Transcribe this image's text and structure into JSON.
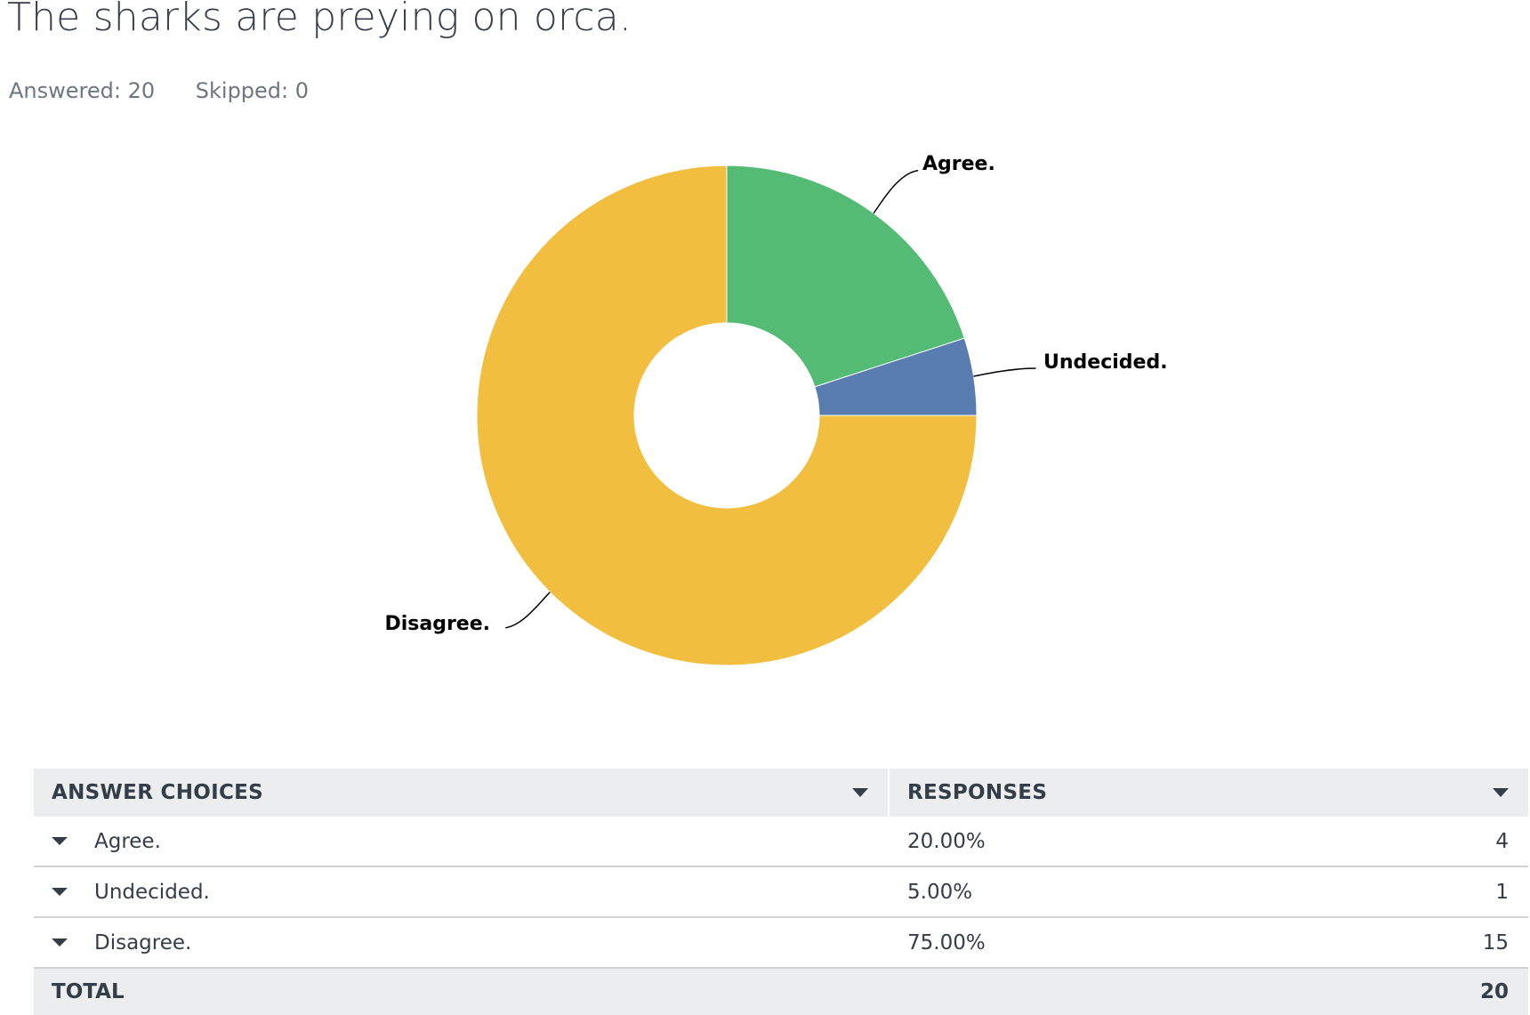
{
  "question": {
    "title": "The sharks are preying on orca.",
    "answered": "Answered: 20",
    "skipped": "Skipped: 0"
  },
  "chart_data": {
    "type": "pie",
    "title": "The sharks are preying on orca.",
    "donut": true,
    "categories": [
      "Agree.",
      "Undecided.",
      "Disagree."
    ],
    "values": [
      20,
      5,
      75
    ],
    "colors": [
      "#53bb74",
      "#5a7db1",
      "#f1be40"
    ]
  },
  "table": {
    "headers": [
      "ANSWER CHOICES",
      "RESPONSES"
    ],
    "rows": [
      {
        "choice": "Agree.",
        "percent": "20.00%",
        "count": "4"
      },
      {
        "choice": "Undecided.",
        "percent": "5.00%",
        "count": "1"
      },
      {
        "choice": "Disagree.",
        "percent": "75.00%",
        "count": "15"
      }
    ],
    "total_label": "TOTAL",
    "total_value": "20"
  }
}
